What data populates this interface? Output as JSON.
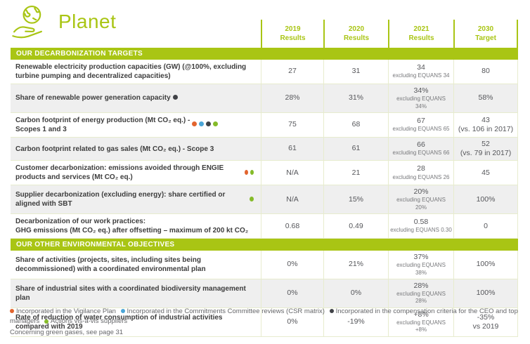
{
  "colors": {
    "brand": "#a9c514",
    "pale": "#e7ecce",
    "grayrow": "#efefef",
    "dots": {
      "orange": "#e2642e",
      "blue": "#4aa6d8",
      "dark": "#404247",
      "green": "#85bb29"
    }
  },
  "header": {
    "title": "Planet",
    "columns": [
      {
        "year": "2019",
        "sub": "Results"
      },
      {
        "year": "2020",
        "sub": "Results"
      },
      {
        "year": "2021",
        "sub": "Results"
      },
      {
        "year": "2030",
        "sub": "Target"
      }
    ]
  },
  "sections": [
    {
      "title": "OUR DECARBONIZATION TARGETS",
      "rows": [
        {
          "label": "Renewable electricity production capacities (GW) (@100%, excluding turbine pumping and decentralized capacities)",
          "dots": [],
          "values": [
            {
              "main": "27"
            },
            {
              "main": "31"
            },
            {
              "main": "34",
              "sub": "excluding EQUANS 34"
            },
            {
              "main": "80"
            }
          ]
        },
        {
          "label": "Share of renewable power generation capacity",
          "dots": [
            "dark"
          ],
          "values": [
            {
              "main": "28%"
            },
            {
              "main": "31%"
            },
            {
              "main": "34%",
              "sub": "excluding EQUANS 34%"
            },
            {
              "main": "58%"
            }
          ]
        },
        {
          "label": "Carbon footprint of energy production (Mt CO₂ eq.) -\nScopes 1 and 3",
          "dots": [
            "orange",
            "blue",
            "dark",
            "green"
          ],
          "values": [
            {
              "main": "75"
            },
            {
              "main": "68"
            },
            {
              "main": "67",
              "sub": "excluding EQUANS 65"
            },
            {
              "main": "43",
              "note": "(vs. 106 in 2017)"
            }
          ]
        },
        {
          "label": "Carbon footprint related to gas sales (Mt CO₂ eq.) - Scope 3",
          "dots": [],
          "values": [
            {
              "main": "61"
            },
            {
              "main": "61"
            },
            {
              "main": "66",
              "sub": "excluding EQUANS 66"
            },
            {
              "main": "52",
              "note": "(vs. 79 in 2017)"
            }
          ]
        },
        {
          "label": "Customer decarbonization: emissions avoided through ENGIE products and services (Mt CO₂ eq.)",
          "dots": [
            "orange",
            "green"
          ],
          "values": [
            {
              "main": "N/A"
            },
            {
              "main": "21"
            },
            {
              "main": "28",
              "sub": "excluding EQUANS 26"
            },
            {
              "main": "45"
            }
          ]
        },
        {
          "label": "Supplier decarbonization (excluding energy): share certified or aligned with SBT",
          "dots": [
            "green"
          ],
          "values": [
            {
              "main": "N/A"
            },
            {
              "main": "15%"
            },
            {
              "main": "20%",
              "sub": "excluding EQUANS 20%"
            },
            {
              "main": "100%"
            }
          ]
        },
        {
          "label": "Decarbonization of our work practices:\nGHG emissions (Mt CO₂ eq.) after offsetting – maximum of 200 kt CO₂",
          "dots": [],
          "values": [
            {
              "main": "0.68"
            },
            {
              "main": "0.49"
            },
            {
              "main": "0.58",
              "sub": "excluding EQUANS 0.30"
            },
            {
              "main": "0"
            }
          ]
        }
      ]
    },
    {
      "title": "OUR OTHER ENVIRONMENTAL OBJECTIVES",
      "rows": [
        {
          "label": "Share of activities (projects, sites, including sites being decommissioned) with a coordinated environmental plan",
          "dots": [],
          "values": [
            {
              "main": "0%"
            },
            {
              "main": "21%"
            },
            {
              "main": "37%",
              "sub": "excluding EQUANS 38%"
            },
            {
              "main": "100%"
            }
          ]
        },
        {
          "label": "Share of industrial sites with a coordinated biodiversity management plan",
          "dots": [],
          "values": [
            {
              "main": "0%"
            },
            {
              "main": "0%"
            },
            {
              "main": "28%",
              "sub": "excluding EQUANS 28%"
            },
            {
              "main": "100%"
            }
          ]
        },
        {
          "label": "Rate of reduction of water consumption of industrial activities compared with 2019",
          "dots": [],
          "values": [
            {
              "main": "0%"
            },
            {
              "main": "-19%"
            },
            {
              "main": "+8%",
              "sub": "excluding EQUANS +8%"
            },
            {
              "main": "-35%",
              "note": "vs 2019"
            }
          ]
        }
      ]
    }
  ],
  "footnotes": {
    "legend": [
      {
        "color": "orange",
        "text": "Incorporated in the Vigilance Plan"
      },
      {
        "color": "blue",
        "text": "Incorporated in the Commitments Committee reviews (CSR matrix)"
      },
      {
        "color": "dark",
        "text": "Incorporated in the compensation criteria for the CEO and top managers"
      },
      {
        "color": "green",
        "text": "Actions vis-a-vis suppliers"
      }
    ],
    "note": "Concerning green gases, see page 31"
  }
}
